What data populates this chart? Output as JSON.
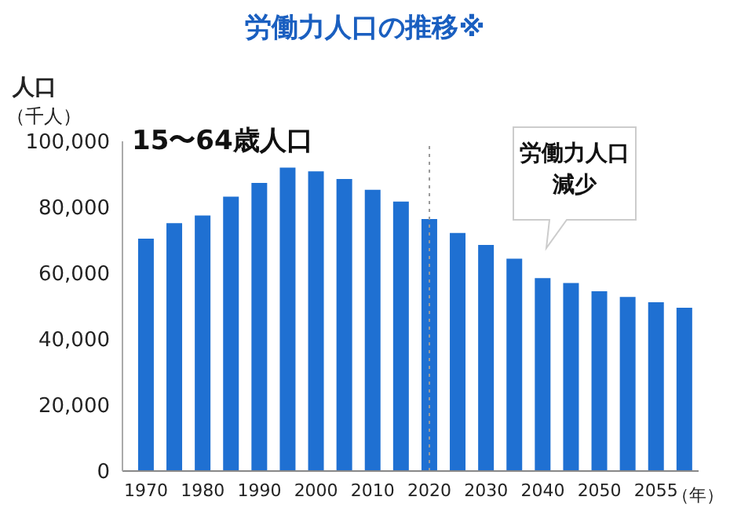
{
  "chart_data": {
    "type": "bar",
    "title": "労働力人口の推移※",
    "ylabel": "人口",
    "xlabel": "（年）",
    "annotations": [
      "（千人）",
      "15〜64歳人口",
      "労働力人口減少"
    ],
    "categories": [
      "1970",
      null,
      "1980",
      null,
      "1990",
      null,
      "2000",
      null,
      "2010",
      null,
      "2020",
      null,
      "2030",
      null,
      "2040",
      null,
      "2050",
      null,
      "2055",
      null
    ],
    "values": [
      70500,
      75200,
      77500,
      83200,
      87400,
      92000,
      90900,
      88600,
      85300,
      81700,
      76400,
      72200,
      68600,
      64400,
      58500,
      57000,
      54500,
      52800,
      51200,
      49500
    ],
    "color": "#1f70d2",
    "ylim": [
      0,
      100000
    ],
    "yticks": [
      0,
      {
        "value": 20000,
        "label": "20,000"
      },
      {
        "value": 40000,
        "label": "40,000"
      },
      {
        "value": 60000,
        "label": "60,000"
      },
      {
        "value": 80000,
        "label": "80,000"
      },
      {
        "value": 100000,
        "label": "100,000"
      }
    ],
    "grid": false,
    "ref_lines": [
      {
        "axis": "x",
        "value": "2020",
        "color": "#999999",
        "line_style": "dotted"
      }
    ]
  }
}
